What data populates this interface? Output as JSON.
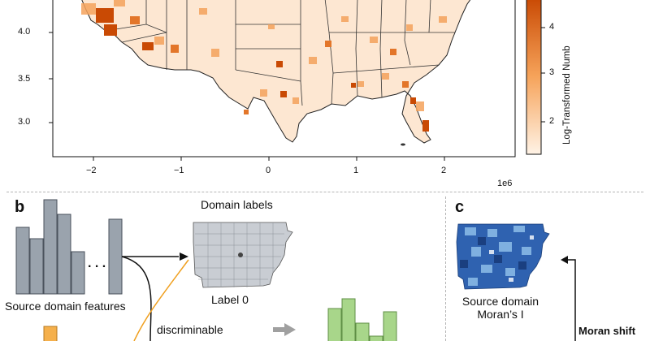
{
  "top_map": {
    "y_ticks": [
      "4.0",
      "3.5",
      "3.0"
    ],
    "x_ticks": [
      "−2",
      "−1",
      "0",
      "1",
      "2"
    ],
    "x_multiplier": "1e6",
    "colorbar_label": "Log-Transformed Numb",
    "colorbar_ticks": [
      "4",
      "3",
      "2"
    ],
    "colors": {
      "low": "#fff3e6",
      "high": "#c94a04",
      "mid": "#f6a35a"
    }
  },
  "panel_b": {
    "letter": "b",
    "domain_labels_title": "Domain labels",
    "source_features_label": "Source domain features",
    "label0": "Label 0",
    "discriminable": "discriminable",
    "dots": ". . .",
    "colors": {
      "gray_bar": "#9aa3ad",
      "orange_bar": "#f5b04c",
      "green_bar": "#a8d68a",
      "arrow_gray": "#a0a0a0"
    }
  },
  "panel_c": {
    "letter": "c",
    "caption_line1": "Source domain",
    "caption_line2": "Moran’s I",
    "moran_shift": "Moran shift",
    "colors": {
      "map_dark": "#1f4f9c",
      "map_light": "#7fb0e0"
    }
  }
}
